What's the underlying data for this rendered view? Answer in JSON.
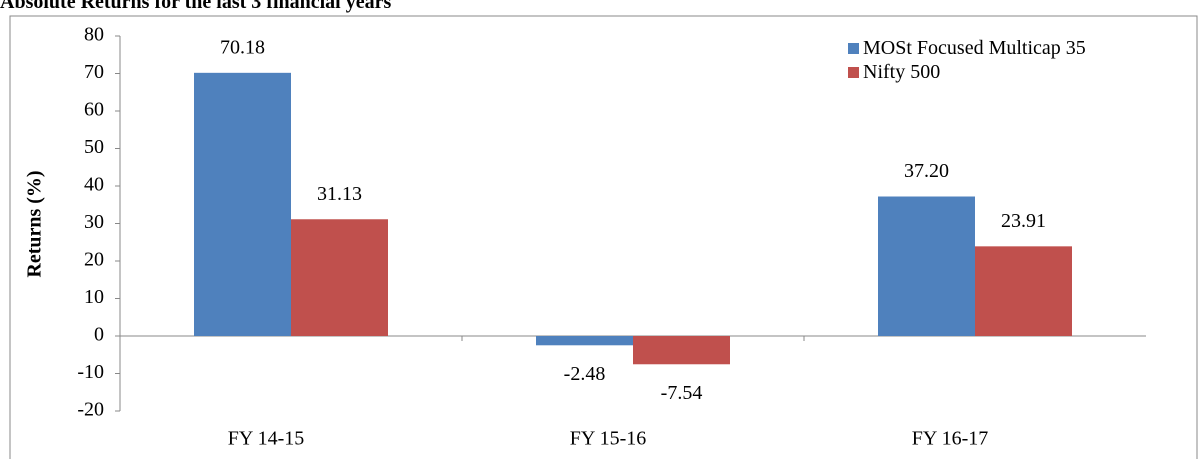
{
  "chart_data": {
    "type": "bar",
    "title": "Absolute Returns for the last 3 financial years",
    "y_label": "Returns (%)",
    "categories": [
      "FY 14-15",
      "FY 15-16",
      "FY 16-17"
    ],
    "series": [
      {
        "name": "MOSt Focused Multicap 35",
        "color": "#4f81bd",
        "values": [
          70.18,
          -2.48,
          37.2
        ],
        "value_labels": [
          "70.18",
          "-2.48",
          "37.20"
        ]
      },
      {
        "name": "Nifty 500",
        "color": "#c0504d",
        "values": [
          31.13,
          -7.54,
          23.91
        ],
        "value_labels": [
          "31.13",
          "-7.54",
          "23.91"
        ]
      }
    ],
    "ylim": [
      -20,
      80
    ],
    "yticks": [
      -20,
      -10,
      0,
      10,
      20,
      30,
      40,
      50,
      60,
      70,
      80
    ],
    "legend": "upper right"
  }
}
